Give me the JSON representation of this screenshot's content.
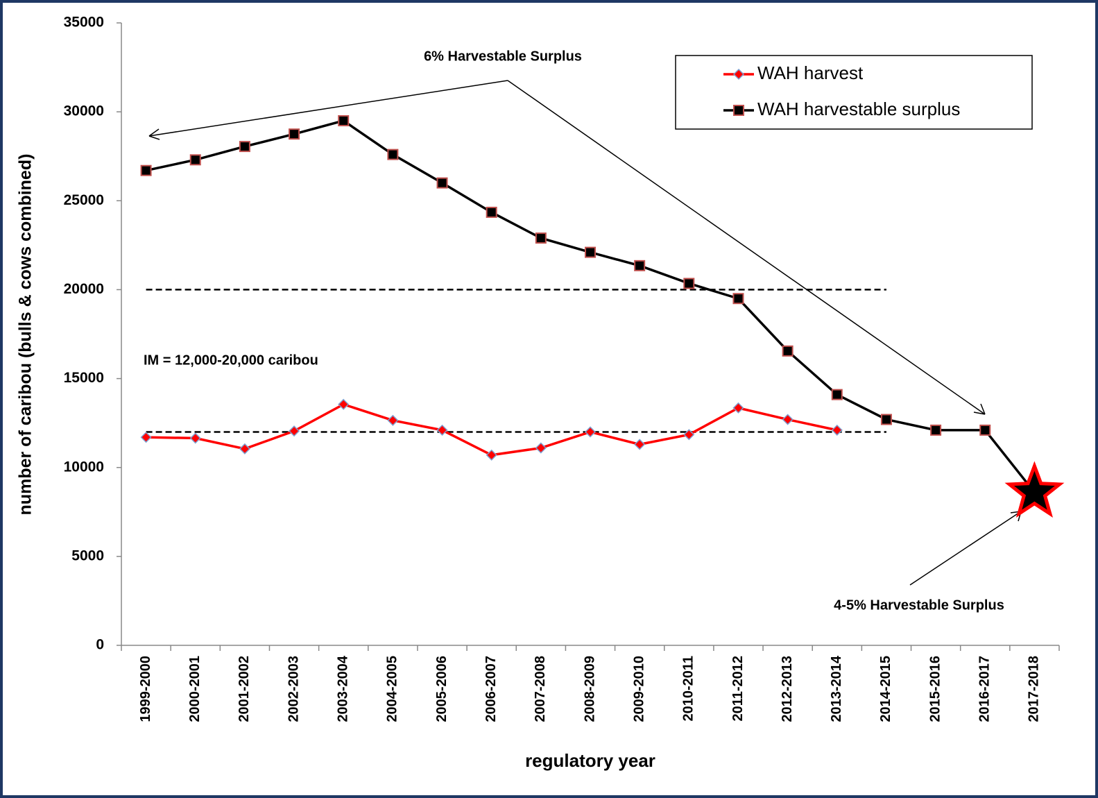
{
  "chart_data": {
    "type": "line",
    "y_label": "number of caribou (bulls & cows combined)",
    "x_label": "regulatory year",
    "categories": [
      "1999-2000",
      "2000-2001",
      "2001-2002",
      "2002-2003",
      "2003-2004",
      "2004-2005",
      "2005-2006",
      "2006-2007",
      "2007-2008",
      "2008-2009",
      "2009-2010",
      "2010-2011",
      "2011-2012",
      "2012-2013",
      "2013-2014",
      "2014-2015",
      "2015-2016",
      "2016-2017",
      "2017-2018"
    ],
    "series": [
      {
        "name": "WAH harvest",
        "color": "#ff0000",
        "marker": "diamond",
        "marker_edge": "#7f9fcf",
        "values": [
          11700,
          11650,
          11050,
          12050,
          13550,
          12650,
          12100,
          10700,
          11100,
          12000,
          11300,
          11850,
          13350,
          12700,
          12100,
          null,
          null,
          null,
          null
        ]
      },
      {
        "name": "WAH harvestable surplus",
        "color": "#000000",
        "marker": "square",
        "marker_edge": "#c0504d",
        "last_marker": "star",
        "values": [
          26700,
          27300,
          28050,
          28750,
          29500,
          27600,
          26000,
          24350,
          22900,
          22100,
          21350,
          20350,
          19500,
          16550,
          14100,
          12700,
          12100,
          12100,
          8600
        ]
      }
    ],
    "reference_lines": [
      {
        "value": 20000,
        "start": "1999-2000",
        "end": "2014-2015"
      },
      {
        "value": 12000,
        "start": "1999-2000",
        "end": "2014-2015"
      }
    ],
    "annotations": [
      "6% Harvestable Surplus",
      "IM = 12,000-20,000 caribou",
      "4-5% Harvestable Surplus"
    ],
    "ylim": [
      0,
      35000
    ],
    "yticks": [
      0,
      5000,
      10000,
      15000,
      20000,
      25000,
      30000,
      35000
    ],
    "legend": "upper right"
  }
}
